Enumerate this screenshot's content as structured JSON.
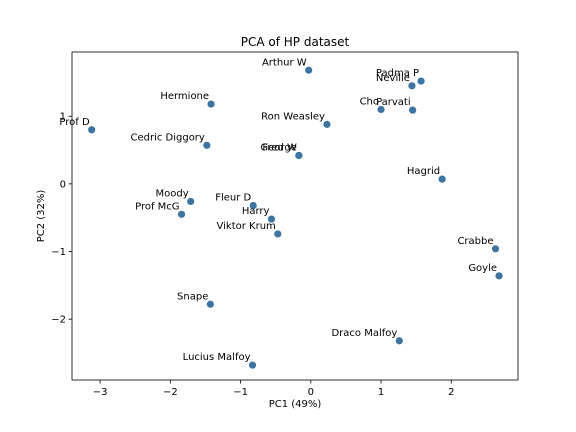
{
  "chart_data": {
    "type": "scatter",
    "title": "PCA of HP dataset",
    "xlabel": "PC1 (49%)",
    "ylabel": "PC2 (32%)",
    "xlim": [
      -3.4,
      2.95
    ],
    "ylim": [
      -2.9,
      1.95
    ],
    "xticks": [
      -3,
      -2,
      -1,
      0,
      1,
      2
    ],
    "yticks": [
      -2,
      -1,
      0,
      1
    ],
    "grid": false,
    "marker_color": "#3b75a4",
    "points": [
      {
        "label": "Arthur W",
        "x": -0.03,
        "y": 1.68
      },
      {
        "label": "Padma P",
        "x": 1.57,
        "y": 1.52
      },
      {
        "label": "Neville",
        "x": 1.44,
        "y": 1.45
      },
      {
        "label": "Hermione",
        "x": -1.42,
        "y": 1.18
      },
      {
        "label": "Cho",
        "x": 1.0,
        "y": 1.1
      },
      {
        "label": "Parvati",
        "x": 1.45,
        "y": 1.09
      },
      {
        "label": "Prof D",
        "x": -3.12,
        "y": 0.8
      },
      {
        "label": "Ron Weasley",
        "x": 0.23,
        "y": 0.88
      },
      {
        "label": "Cedric Diggory",
        "x": -1.48,
        "y": 0.57
      },
      {
        "label": "George",
        "x": -0.17,
        "y": 0.42
      },
      {
        "label": "Fred W",
        "x": -0.17,
        "y": 0.42
      },
      {
        "label": "Hagrid",
        "x": 1.87,
        "y": 0.07
      },
      {
        "label": "Moody",
        "x": -1.71,
        "y": -0.26
      },
      {
        "label": "Prof McG",
        "x": -1.84,
        "y": -0.45
      },
      {
        "label": "Fleur D",
        "x": -0.82,
        "y": -0.32
      },
      {
        "label": "Harry",
        "x": -0.56,
        "y": -0.52
      },
      {
        "label": "Viktor Krum",
        "x": -0.47,
        "y": -0.74
      },
      {
        "label": "Crabbe",
        "x": 2.63,
        "y": -0.96
      },
      {
        "label": "Goyle",
        "x": 2.68,
        "y": -1.36
      },
      {
        "label": "Snape",
        "x": -1.43,
        "y": -1.78
      },
      {
        "label": "Draco Malfoy",
        "x": 1.26,
        "y": -2.32
      },
      {
        "label": "Lucius Malfoy",
        "x": -0.83,
        "y": -2.68
      }
    ]
  }
}
